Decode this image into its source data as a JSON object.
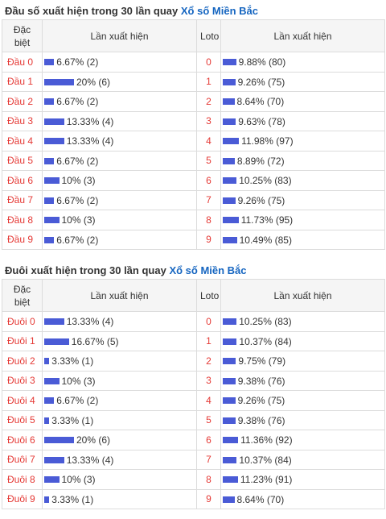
{
  "dau": {
    "title": "Đầu số xuất hiện trong 30 lần quay",
    "link": "Xổ số Miền Bắc",
    "headers": {
      "special_line1": "Đặc",
      "special_line2": "biệt",
      "count": "Lần xuất hiện",
      "loto": "Loto",
      "count2": "Lần xuất hiện"
    },
    "rows": [
      {
        "label": "Đầu 0",
        "text": "6.67% (2)",
        "pct": 6.67,
        "loto": "0",
        "loto_text": "9.88% (80)",
        "loto_pct": 9.88
      },
      {
        "label": "Đầu 1",
        "text": "20% (6)",
        "pct": 20,
        "loto": "1",
        "loto_text": "9.26% (75)",
        "loto_pct": 9.26
      },
      {
        "label": "Đầu 2",
        "text": "6.67% (2)",
        "pct": 6.67,
        "loto": "2",
        "loto_text": "8.64% (70)",
        "loto_pct": 8.64
      },
      {
        "label": "Đầu 3",
        "text": "13.33% (4)",
        "pct": 13.33,
        "loto": "3",
        "loto_text": "9.63% (78)",
        "loto_pct": 9.63
      },
      {
        "label": "Đầu 4",
        "text": "13.33% (4)",
        "pct": 13.33,
        "loto": "4",
        "loto_text": "11.98% (97)",
        "loto_pct": 11.98
      },
      {
        "label": "Đầu 5",
        "text": "6.67% (2)",
        "pct": 6.67,
        "loto": "5",
        "loto_text": "8.89% (72)",
        "loto_pct": 8.89
      },
      {
        "label": "Đầu 6",
        "text": "10% (3)",
        "pct": 10,
        "loto": "6",
        "loto_text": "10.25% (83)",
        "loto_pct": 10.25
      },
      {
        "label": "Đầu 7",
        "text": "6.67% (2)",
        "pct": 6.67,
        "loto": "7",
        "loto_text": "9.26% (75)",
        "loto_pct": 9.26
      },
      {
        "label": "Đầu 8",
        "text": "10% (3)",
        "pct": 10,
        "loto": "8",
        "loto_text": "11.73% (95)",
        "loto_pct": 11.73
      },
      {
        "label": "Đầu 9",
        "text": "6.67% (2)",
        "pct": 6.67,
        "loto": "9",
        "loto_text": "10.49% (85)",
        "loto_pct": 10.49
      }
    ]
  },
  "duoi": {
    "title": "Đuôi xuất hiện trong 30 lần quay",
    "link": "Xổ số Miền Bắc",
    "headers": {
      "special_line1": "Đặc",
      "special_line2": "biệt",
      "count": "Lần xuất hiện",
      "loto": "Loto",
      "count2": "Lần xuất hiện"
    },
    "rows": [
      {
        "label": "Đuôi 0",
        "text": "13.33% (4)",
        "pct": 13.33,
        "loto": "0",
        "loto_text": "10.25% (83)",
        "loto_pct": 10.25
      },
      {
        "label": "Đuôi 1",
        "text": "16.67% (5)",
        "pct": 16.67,
        "loto": "1",
        "loto_text": "10.37% (84)",
        "loto_pct": 10.37
      },
      {
        "label": "Đuôi 2",
        "text": "3.33% (1)",
        "pct": 3.33,
        "loto": "2",
        "loto_text": "9.75% (79)",
        "loto_pct": 9.75
      },
      {
        "label": "Đuôi 3",
        "text": "10% (3)",
        "pct": 10,
        "loto": "3",
        "loto_text": "9.38% (76)",
        "loto_pct": 9.38
      },
      {
        "label": "Đuôi 4",
        "text": "6.67% (2)",
        "pct": 6.67,
        "loto": "4",
        "loto_text": "9.26% (75)",
        "loto_pct": 9.26
      },
      {
        "label": "Đuôi 5",
        "text": "3.33% (1)",
        "pct": 3.33,
        "loto": "5",
        "loto_text": "9.38% (76)",
        "loto_pct": 9.38
      },
      {
        "label": "Đuôi 6",
        "text": "20% (6)",
        "pct": 20,
        "loto": "6",
        "loto_text": "11.36% (92)",
        "loto_pct": 11.36
      },
      {
        "label": "Đuôi 7",
        "text": "13.33% (4)",
        "pct": 13.33,
        "loto": "7",
        "loto_text": "10.37% (84)",
        "loto_pct": 10.37
      },
      {
        "label": "Đuôi 8",
        "text": "10% (3)",
        "pct": 10,
        "loto": "8",
        "loto_text": "11.23% (91)",
        "loto_pct": 11.23
      },
      {
        "label": "Đuôi 9",
        "text": "3.33% (1)",
        "pct": 3.33,
        "loto": "9",
        "loto_text": "8.64% (70)",
        "loto_pct": 8.64
      }
    ]
  },
  "colors": {
    "bar": "#4a5bd6",
    "label": "#e53935",
    "link": "#1565c0"
  }
}
